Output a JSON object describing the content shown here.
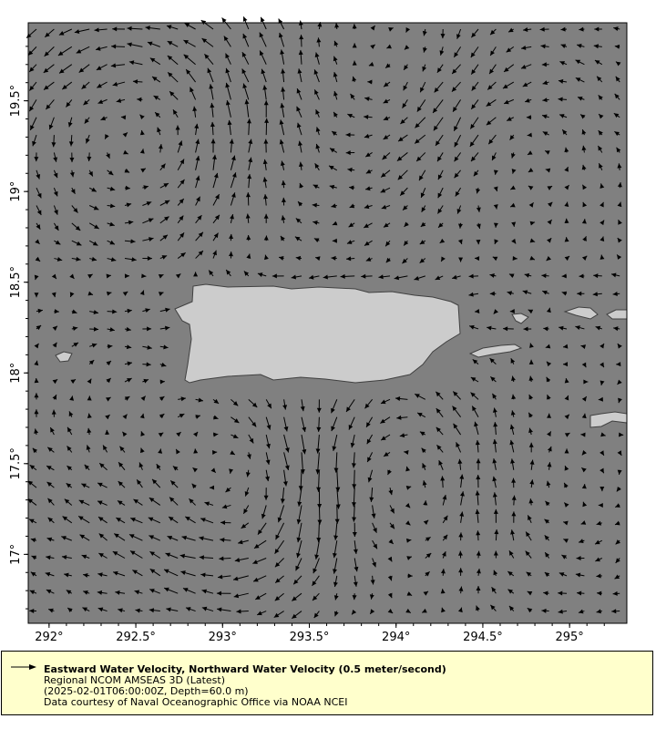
{
  "map": {
    "lon_range": [
      291.88,
      295.33
    ],
    "lat_range": [
      16.62,
      19.93
    ],
    "lon_ticks": [
      {
        "value": 292,
        "label": "292°"
      },
      {
        "value": 292.5,
        "label": "292.5°"
      },
      {
        "value": 293,
        "label": "293°"
      },
      {
        "value": 293.5,
        "label": "293.5°"
      },
      {
        "value": 294,
        "label": "294°"
      },
      {
        "value": 294.5,
        "label": "294.5°"
      },
      {
        "value": 295,
        "label": "295°"
      }
    ],
    "lat_ticks": [
      {
        "value": 17,
        "label": "17°"
      },
      {
        "value": 17.5,
        "label": "17.5°"
      },
      {
        "value": 18,
        "label": "18°"
      },
      {
        "value": 18.5,
        "label": "18.5°"
      },
      {
        "value": 19,
        "label": "19°"
      },
      {
        "value": 19.5,
        "label": "19.5°"
      }
    ],
    "colors": {
      "ocean": "#808080",
      "land": "#cccccc",
      "coast": "#404040",
      "arrow": "#000000"
    }
  },
  "legend": {
    "title": "Eastward Water Velocity, Northward Water Velocity (0.5 meter/second)",
    "line1": "Regional NCOM AMSEAS 3D (Latest)",
    "line2": "(2025-02-01T06:00:00Z, Depth=60.0 m)",
    "line3": "Data courtesy of Naval Oceanographic Office via NOAA NCEI",
    "background": "#ffffcc"
  }
}
